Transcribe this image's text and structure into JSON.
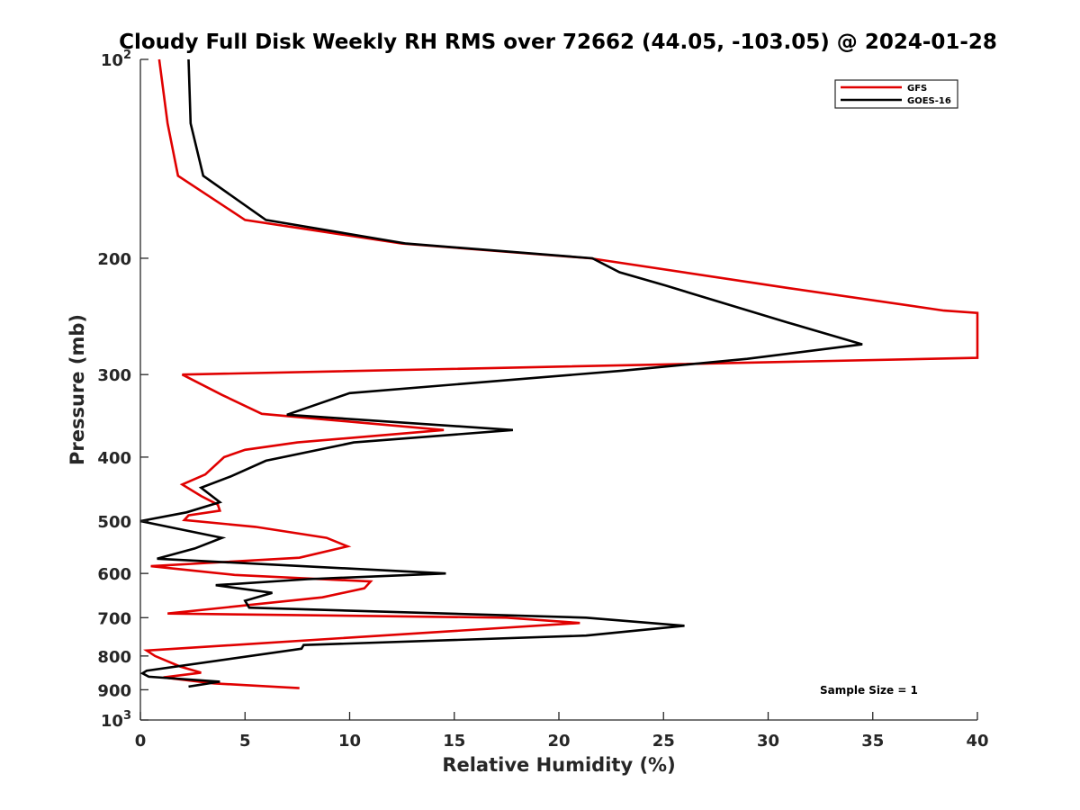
{
  "chart_data": {
    "type": "line",
    "title": "Cloudy Full Disk Weekly RH RMS over 72662 (44.05, -103.05) @ 2024-01-28",
    "xlabel": "Relative Humidity (%)",
    "ylabel": "Pressure (mb)",
    "xlim": [
      0,
      40
    ],
    "ylim": [
      100,
      1000
    ],
    "y_scale": "log",
    "y_reversed": true,
    "x_ticks": [
      "0",
      "5",
      "10",
      "15",
      "20",
      "25",
      "30",
      "35",
      "40"
    ],
    "y_ticks": [
      {
        "value": 100,
        "base": "10",
        "exp": "2"
      },
      {
        "value": 200,
        "label": "200"
      },
      {
        "value": 300,
        "label": "300"
      },
      {
        "value": 400,
        "label": "400"
      },
      {
        "value": 500,
        "label": "500"
      },
      {
        "value": 600,
        "label": "600"
      },
      {
        "value": 700,
        "label": "700"
      },
      {
        "value": 800,
        "label": "800"
      },
      {
        "value": 900,
        "label": "900"
      },
      {
        "value": 1000,
        "base": "10",
        "exp": "3"
      }
    ],
    "grid": false,
    "legend_position": "top-right",
    "annotation": "Sample Size = 1",
    "series": [
      {
        "name": "GFS",
        "color": "#e00000",
        "points": [
          [
            0.9,
            100
          ],
          [
            1.3,
            125
          ],
          [
            1.8,
            150
          ],
          [
            5.0,
            175
          ],
          [
            12.5,
            190
          ],
          [
            21.5,
            200
          ],
          [
            31.0,
            222
          ],
          [
            38.4,
            240
          ],
          [
            40,
            242
          ],
          [
            40,
            283
          ],
          [
            2.0,
            300
          ],
          [
            3.9,
            322
          ],
          [
            5.8,
            344
          ],
          [
            14.5,
            364
          ],
          [
            7.5,
            380
          ],
          [
            5.0,
            390
          ],
          [
            4.0,
            400
          ],
          [
            3.1,
            425
          ],
          [
            2.0,
            440
          ],
          [
            2.9,
            458
          ],
          [
            3.7,
            472
          ],
          [
            3.8,
            482
          ],
          [
            2.3,
            490
          ],
          [
            2.1,
            498
          ],
          [
            5.5,
            510
          ],
          [
            8.9,
            530
          ],
          [
            9.9,
            546
          ],
          [
            7.6,
            568
          ],
          [
            0.5,
            585
          ],
          [
            4.5,
            603
          ],
          [
            11.0,
            617
          ],
          [
            10.7,
            632
          ],
          [
            8.7,
            652
          ],
          [
            1.3,
            690
          ],
          [
            17.5,
            700
          ],
          [
            21.0,
            713
          ],
          [
            0.3,
            785
          ],
          [
            0.7,
            800
          ],
          [
            1.9,
            830
          ],
          [
            2.9,
            848
          ],
          [
            1.1,
            862
          ],
          [
            3.5,
            880
          ],
          [
            7.6,
            895
          ]
        ]
      },
      {
        "name": "GOES-16",
        "color": "#000000",
        "points": [
          [
            2.3,
            100
          ],
          [
            2.4,
            125
          ],
          [
            3.0,
            150
          ],
          [
            6.0,
            175
          ],
          [
            12.7,
            190
          ],
          [
            21.6,
            200
          ],
          [
            22.9,
            210
          ],
          [
            25.1,
            220
          ],
          [
            30.9,
            250
          ],
          [
            34.5,
            270
          ],
          [
            29.0,
            284
          ],
          [
            23.0,
            296
          ],
          [
            10.0,
            320
          ],
          [
            7.0,
            345
          ],
          [
            17.8,
            364
          ],
          [
            10.2,
            380
          ],
          [
            6.0,
            405
          ],
          [
            4.3,
            428
          ],
          [
            2.9,
            445
          ],
          [
            3.8,
            468
          ],
          [
            2.2,
            485
          ],
          [
            0.0,
            500
          ],
          [
            3.9,
            530
          ],
          [
            2.6,
            550
          ],
          [
            0.8,
            570
          ],
          [
            14.6,
            600
          ],
          [
            8.0,
            612
          ],
          [
            3.6,
            625
          ],
          [
            6.3,
            642
          ],
          [
            5.0,
            660
          ],
          [
            5.2,
            676
          ],
          [
            21.3,
            700
          ],
          [
            26.0,
            720
          ],
          [
            21.3,
            745
          ],
          [
            7.8,
            770
          ],
          [
            7.7,
            780
          ],
          [
            0.3,
            842
          ],
          [
            0.1,
            850
          ],
          [
            0.4,
            860
          ],
          [
            3.8,
            875
          ],
          [
            2.3,
            890
          ]
        ]
      }
    ]
  }
}
